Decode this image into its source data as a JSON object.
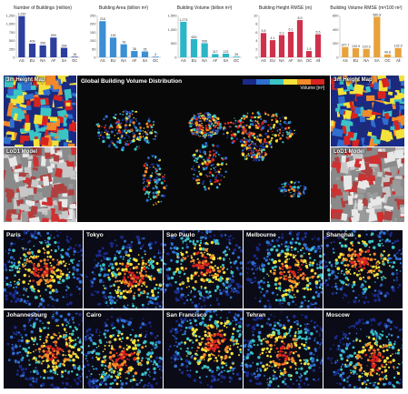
{
  "charts": [
    {
      "title": "Number of Buildings (million)",
      "color": "#2c3e9e",
      "ymax": 1250,
      "ticks": [
        0,
        250,
        500,
        750,
        1000,
        1250
      ],
      "categories": [
        "AS",
        "EU",
        "NA",
        "AF",
        "SA",
        "OC"
      ],
      "values": [
        1230,
        409,
        356,
        590,
        284,
        18
      ],
      "labels": [
        "1,230",
        "409",
        "356",
        "590",
        "284",
        "18"
      ]
    },
    {
      "title": "Building Area (billion m²)",
      "color": "#3b8fd4",
      "ymax": 250,
      "ticks": [
        0,
        50,
        100,
        150,
        200,
        250
      ],
      "categories": [
        "AS",
        "EU",
        "NA",
        "AF",
        "SA",
        "OC"
      ],
      "values": [
        216,
        118,
        78,
        38,
        35,
        4
      ],
      "labels": [
        "216",
        "118",
        "78",
        "38",
        "35",
        "4"
      ]
    },
    {
      "title": "Building Volume (billion m³)",
      "color": "#2bb6c8",
      "ymax": 1500,
      "ticks": [
        0,
        500,
        1000,
        1500
      ],
      "categories": [
        "AS",
        "EU",
        "NA",
        "AF",
        "SA",
        "OC"
      ],
      "values": [
        1273,
        653,
        506,
        117,
        132,
        26
      ],
      "labels": [
        "1,273",
        "653",
        "506",
        "117",
        "132",
        "26"
      ]
    },
    {
      "title": "Building Height RMSE (m)",
      "color": "#d0304b",
      "ymax": 10,
      "ticks": [
        0,
        2,
        4,
        6,
        8,
        10
      ],
      "categories": [
        "AS",
        "EU",
        "NA",
        "AF",
        "SA",
        "OC",
        "All"
      ],
      "values": [
        5.8,
        4.1,
        5.3,
        6.1,
        8.9,
        1.5,
        5.5
      ],
      "labels": [
        "5.8",
        "4.1",
        "5.3",
        "6.1",
        "8.9",
        "1.5",
        "5.5"
      ]
    },
    {
      "title": "Building Volume RMSE (m³/100 m²)",
      "color": "#e8a23a",
      "ymax": 600,
      "ticks": [
        0,
        200,
        400,
        600
      ],
      "categories": [
        "AS",
        "EU",
        "NA",
        "SA",
        "OC",
        "All"
      ],
      "values": [
        147.7,
        130.9,
        120.3,
        580.8,
        40.8,
        132.9
      ],
      "labels": [
        "147.7",
        "130.9",
        "120.3",
        "580.8",
        "40.8",
        "132.9"
      ]
    }
  ],
  "panels": {
    "left_top": "3m Height Map",
    "left_bottom": "LoD1 Model",
    "right_top": "3m Height Map",
    "right_bottom": "LoD1 Model",
    "map_title": "Global Building Volume Distribution",
    "legend_label": "Volume [m³]"
  },
  "legend_colors": [
    "#1a2a8a",
    "#2f6fd0",
    "#3bc4c4",
    "#f2e23a",
    "#f28a2a",
    "#d8231f"
  ],
  "cities": [
    "Paris",
    "Tokyo",
    "Sao Paulo",
    "Melbourne",
    "Shanghai",
    "Johannesburg",
    "Cairo",
    "San Francisco",
    "Tehran",
    "Moscow"
  ]
}
